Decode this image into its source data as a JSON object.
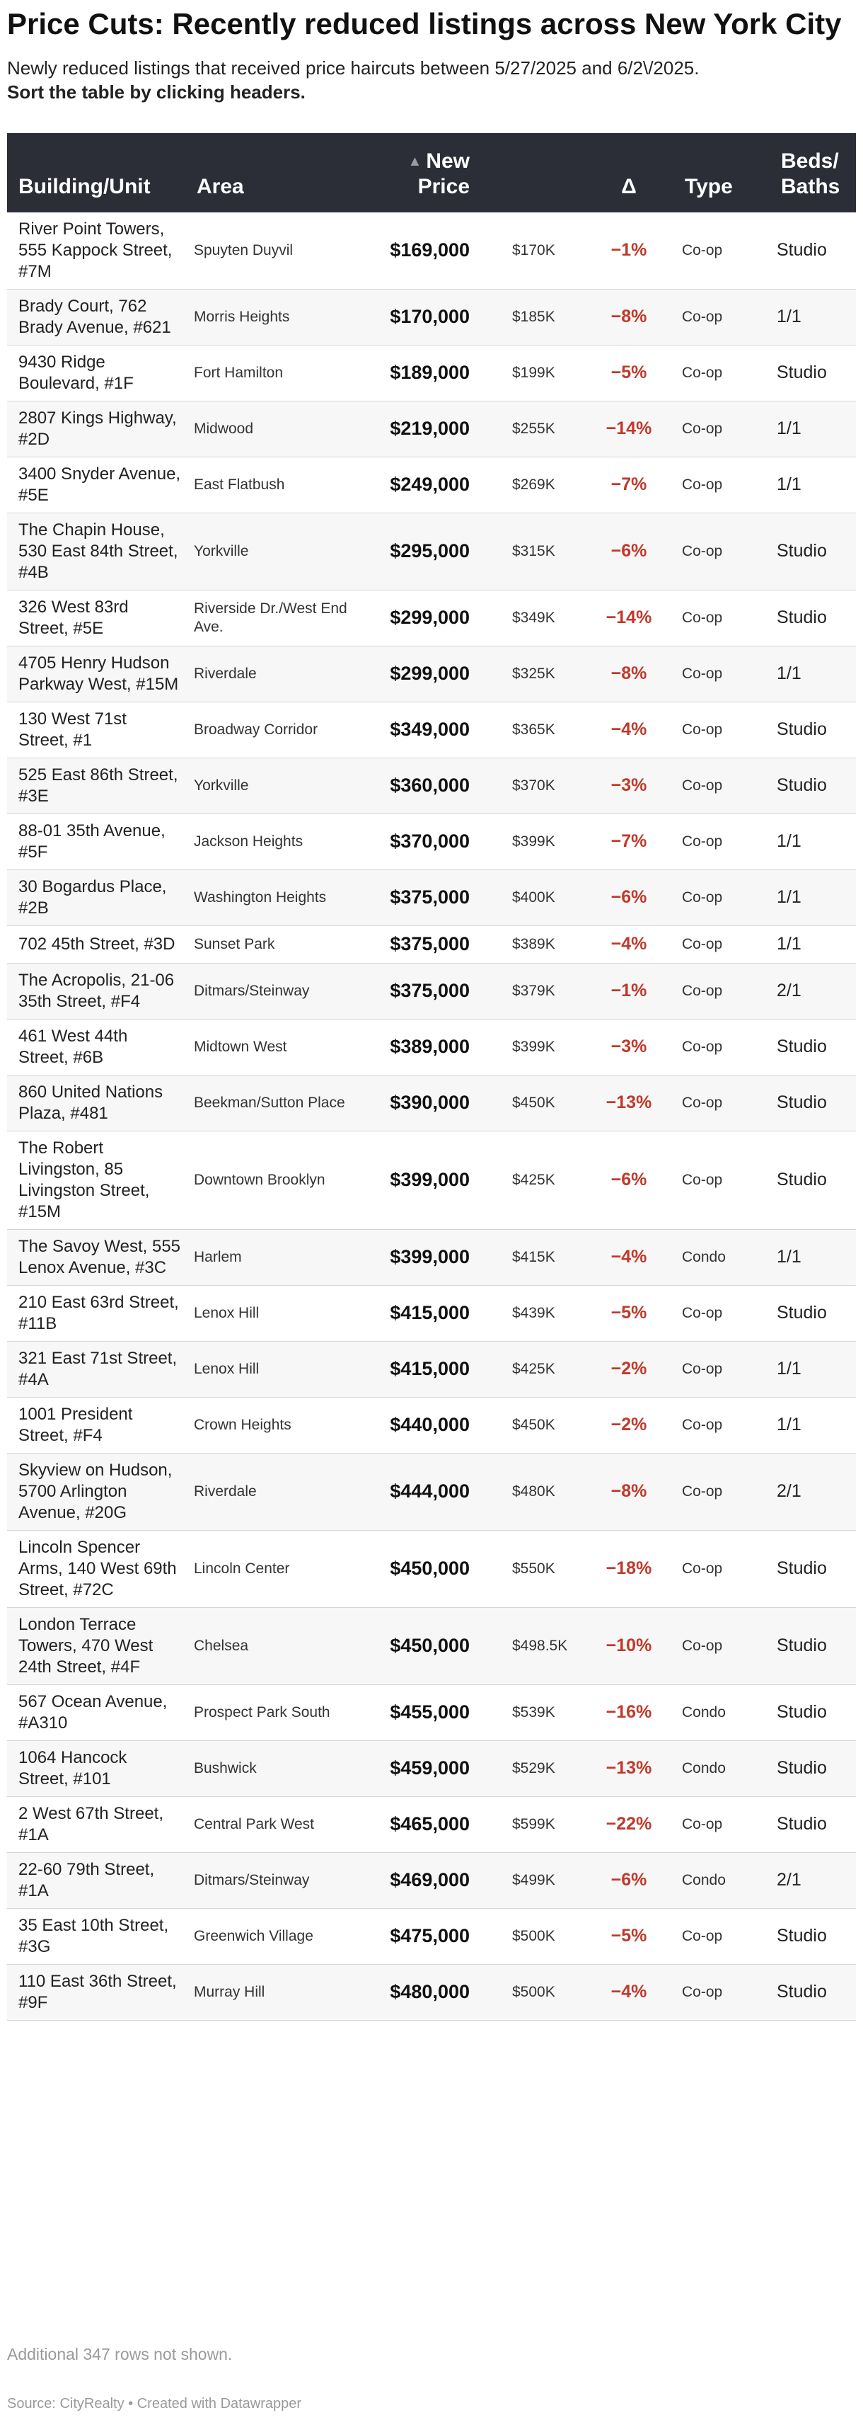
{
  "header": {
    "title": "Price Cuts: Recently reduced listings across New York City",
    "subtitle": "Newly reduced listings that received price haircuts between 5/27/2025 and 6/2\\/2025.",
    "instruction": "Sort the table by clicking headers."
  },
  "table": {
    "columns": {
      "building": "Building/Unit",
      "area": "Area",
      "new_price": "New Price",
      "sort_indicator": "▲",
      "old_price": "",
      "delta": "Δ",
      "type": "Type",
      "beds_baths": "Beds/ Baths"
    },
    "rows": [
      {
        "building": "River Point Towers, 555 Kappock Street, #7M",
        "area": "Spuyten Duyvil",
        "new_price": "$169,000",
        "old_price": "$170K",
        "delta": "−1%",
        "type": "Co-op",
        "beds_baths": "Studio"
      },
      {
        "building": "Brady Court, 762 Brady Avenue, #621",
        "area": "Morris Heights",
        "new_price": "$170,000",
        "old_price": "$185K",
        "delta": "−8%",
        "type": "Co-op",
        "beds_baths": "1/1"
      },
      {
        "building": "9430 Ridge Boulevard, #1F",
        "area": "Fort Hamilton",
        "new_price": "$189,000",
        "old_price": "$199K",
        "delta": "−5%",
        "type": "Co-op",
        "beds_baths": "Studio"
      },
      {
        "building": "2807 Kings Highway, #2D",
        "area": "Midwood",
        "new_price": "$219,000",
        "old_price": "$255K",
        "delta": "−14%",
        "type": "Co-op",
        "beds_baths": "1/1"
      },
      {
        "building": "3400 Snyder Avenue, #5E",
        "area": "East Flatbush",
        "new_price": "$249,000",
        "old_price": "$269K",
        "delta": "−7%",
        "type": "Co-op",
        "beds_baths": "1/1"
      },
      {
        "building": "The Chapin House, 530 East 84th Street, #4B",
        "area": "Yorkville",
        "new_price": "$295,000",
        "old_price": "$315K",
        "delta": "−6%",
        "type": "Co-op",
        "beds_baths": "Studio"
      },
      {
        "building": "326 West 83rd Street, #5E",
        "area": "Riverside Dr./West End Ave.",
        "new_price": "$299,000",
        "old_price": "$349K",
        "delta": "−14%",
        "type": "Co-op",
        "beds_baths": "Studio"
      },
      {
        "building": "4705 Henry Hudson Parkway West, #15M",
        "area": "Riverdale",
        "new_price": "$299,000",
        "old_price": "$325K",
        "delta": "−8%",
        "type": "Co-op",
        "beds_baths": "1/1"
      },
      {
        "building": "130 West 71st Street, #1",
        "area": "Broadway Corridor",
        "new_price": "$349,000",
        "old_price": "$365K",
        "delta": "−4%",
        "type": "Co-op",
        "beds_baths": "Studio"
      },
      {
        "building": "525 East 86th Street, #3E",
        "area": "Yorkville",
        "new_price": "$360,000",
        "old_price": "$370K",
        "delta": "−3%",
        "type": "Co-op",
        "beds_baths": "Studio"
      },
      {
        "building": "88-01 35th Avenue, #5F",
        "area": "Jackson Heights",
        "new_price": "$370,000",
        "old_price": "$399K",
        "delta": "−7%",
        "type": "Co-op",
        "beds_baths": "1/1"
      },
      {
        "building": "30 Bogardus Place, #2B",
        "area": "Washington Heights",
        "new_price": "$375,000",
        "old_price": "$400K",
        "delta": "−6%",
        "type": "Co-op",
        "beds_baths": "1/1"
      },
      {
        "building": "702 45th Street, #3D",
        "area": "Sunset Park",
        "new_price": "$375,000",
        "old_price": "$389K",
        "delta": "−4%",
        "type": "Co-op",
        "beds_baths": "1/1"
      },
      {
        "building": "The Acropolis, 21-06 35th Street, #F4",
        "area": "Ditmars/Steinway",
        "new_price": "$375,000",
        "old_price": "$379K",
        "delta": "−1%",
        "type": "Co-op",
        "beds_baths": "2/1"
      },
      {
        "building": "461 West 44th Street, #6B",
        "area": "Midtown West",
        "new_price": "$389,000",
        "old_price": "$399K",
        "delta": "−3%",
        "type": "Co-op",
        "beds_baths": "Studio"
      },
      {
        "building": "860 United Nations Plaza, #481",
        "area": "Beekman/Sutton Place",
        "new_price": "$390,000",
        "old_price": "$450K",
        "delta": "−13%",
        "type": "Co-op",
        "beds_baths": "Studio"
      },
      {
        "building": "The Robert Livingston, 85 Livingston Street, #15M",
        "area": "Downtown Brooklyn",
        "new_price": "$399,000",
        "old_price": "$425K",
        "delta": "−6%",
        "type": "Co-op",
        "beds_baths": "Studio"
      },
      {
        "building": "The Savoy West, 555 Lenox Avenue, #3C",
        "area": "Harlem",
        "new_price": "$399,000",
        "old_price": "$415K",
        "delta": "−4%",
        "type": "Condo",
        "beds_baths": "1/1"
      },
      {
        "building": "210 East 63rd Street, #11B",
        "area": "Lenox Hill",
        "new_price": "$415,000",
        "old_price": "$439K",
        "delta": "−5%",
        "type": "Co-op",
        "beds_baths": "Studio"
      },
      {
        "building": "321 East 71st Street, #4A",
        "area": "Lenox Hill",
        "new_price": "$415,000",
        "old_price": "$425K",
        "delta": "−2%",
        "type": "Co-op",
        "beds_baths": "1/1"
      },
      {
        "building": "1001 President Street, #F4",
        "area": "Crown Heights",
        "new_price": "$440,000",
        "old_price": "$450K",
        "delta": "−2%",
        "type": "Co-op",
        "beds_baths": "1/1"
      },
      {
        "building": "Skyview on Hudson, 5700 Arlington Avenue, #20G",
        "area": "Riverdale",
        "new_price": "$444,000",
        "old_price": "$480K",
        "delta": "−8%",
        "type": "Co-op",
        "beds_baths": "2/1"
      },
      {
        "building": "Lincoln Spencer Arms, 140 West 69th Street, #72C",
        "area": "Lincoln Center",
        "new_price": "$450,000",
        "old_price": "$550K",
        "delta": "−18%",
        "type": "Co-op",
        "beds_baths": "Studio"
      },
      {
        "building": "London Terrace Towers, 470 West 24th Street, #4F",
        "area": "Chelsea",
        "new_price": "$450,000",
        "old_price": "$498.5K",
        "delta": "−10%",
        "type": "Co-op",
        "beds_baths": "Studio"
      },
      {
        "building": "567 Ocean Avenue, #A310",
        "area": "Prospect Park South",
        "new_price": "$455,000",
        "old_price": "$539K",
        "delta": "−16%",
        "type": "Condo",
        "beds_baths": "Studio"
      },
      {
        "building": "1064 Hancock Street, #101",
        "area": "Bushwick",
        "new_price": "$459,000",
        "old_price": "$529K",
        "delta": "−13%",
        "type": "Condo",
        "beds_baths": "Studio"
      },
      {
        "building": "2 West 67th Street, #1A",
        "area": "Central Park West",
        "new_price": "$465,000",
        "old_price": "$599K",
        "delta": "−22%",
        "type": "Co-op",
        "beds_baths": "Studio"
      },
      {
        "building": "22-60 79th Street, #1A",
        "area": "Ditmars/Steinway",
        "new_price": "$469,000",
        "old_price": "$499K",
        "delta": "−6%",
        "type": "Condo",
        "beds_baths": "2/1"
      },
      {
        "building": "35 East 10th Street, #3G",
        "area": "Greenwich Village",
        "new_price": "$475,000",
        "old_price": "$500K",
        "delta": "−5%",
        "type": "Co-op",
        "beds_baths": "Studio"
      },
      {
        "building": "110 East 36th Street, #9F",
        "area": "Murray Hill",
        "new_price": "$480,000",
        "old_price": "$500K",
        "delta": "−4%",
        "type": "Co-op",
        "beds_baths": "Studio"
      }
    ]
  },
  "footer": {
    "rows_note": "Additional 347 rows not shown.",
    "source": "Source: CityRealty • Created with Datawrapper"
  },
  "colors": {
    "header_bg": "#2b2e36",
    "delta_red": "#c0392b",
    "zebra": "#f7f7f7"
  }
}
